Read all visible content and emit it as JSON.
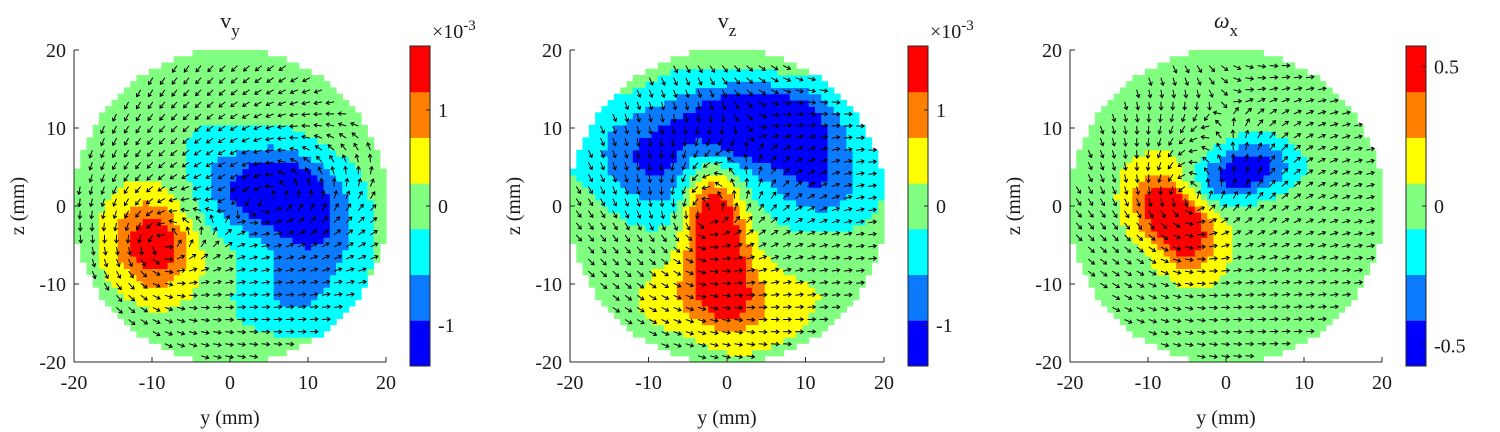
{
  "chart_data": [
    {
      "type": "heatmap",
      "subtype": "contour-with-quiver",
      "title": "v_y",
      "title_main": "v",
      "title_sub": "y",
      "xlabel": "y (mm)",
      "ylabel": "z (mm)",
      "xlim": [
        -20,
        20
      ],
      "ylim": [
        -20,
        20
      ],
      "x_ticks": [
        "-20",
        "-10",
        "0",
        "10",
        "20"
      ],
      "y_ticks": [
        "20",
        "10",
        "0",
        "-10",
        "-20"
      ],
      "colorbar": {
        "multiplier_label": "×10",
        "multiplier_exp": "-3",
        "tick_labels": [
          "1",
          "0",
          "-1"
        ],
        "levels": [
          "#0000ff",
          "#0a7bff",
          "#00ffff",
          "#80ff80",
          "#ffff00",
          "#ff7f00",
          "#ff0000"
        ]
      },
      "regions": [
        {
          "name": "dominant-negative-lobe",
          "center": [
            5,
            2
          ],
          "level": "#0000ff"
        },
        {
          "name": "positive-lobe",
          "center": [
            -10,
            -5
          ],
          "level": "#ffff00"
        },
        {
          "name": "positive-core",
          "center": [
            -9,
            -5
          ],
          "level": "#ff7f00"
        }
      ]
    },
    {
      "type": "heatmap",
      "subtype": "contour-with-quiver",
      "title": "v_z",
      "title_main": "v",
      "title_sub": "z",
      "xlabel": "y (mm)",
      "ylabel": "z (mm)",
      "xlim": [
        -20,
        20
      ],
      "ylim": [
        -20,
        20
      ],
      "x_ticks": [
        "-20",
        "-10",
        "0",
        "10",
        "20"
      ],
      "y_ticks": [
        "20",
        "10",
        "0",
        "-10",
        "-20"
      ],
      "colorbar": {
        "multiplier_label": "×10",
        "multiplier_exp": "-3",
        "tick_labels": [
          "1",
          "0",
          "-1"
        ],
        "levels": [
          "#0000ff",
          "#0a7bff",
          "#00ffff",
          "#80ff80",
          "#ffff00",
          "#ff7f00",
          "#ff0000"
        ]
      },
      "regions": [
        {
          "name": "negative-upper-band",
          "center": [
            3,
            10
          ],
          "level": "#0000ff"
        },
        {
          "name": "positive-lobe",
          "center": [
            -1,
            -4
          ],
          "level": "#ffff00"
        },
        {
          "name": "positive-core",
          "center": [
            -2,
            -2
          ],
          "level": "#ff0000"
        }
      ]
    },
    {
      "type": "heatmap",
      "subtype": "contour-with-quiver",
      "title": "ω_x",
      "title_main": "ω",
      "title_sub": "x",
      "xlabel": "y (mm)",
      "ylabel": "z (mm)",
      "xlim": [
        -20,
        20
      ],
      "ylim": [
        -20,
        20
      ],
      "x_ticks": [
        "-20",
        "-10",
        "0",
        "10",
        "20"
      ],
      "y_ticks": [
        "20",
        "10",
        "0",
        "-10",
        "-20"
      ],
      "colorbar": {
        "multiplier_label": "",
        "multiplier_exp": "",
        "tick_labels": [
          "0.5",
          "0",
          "-0.5"
        ],
        "levels": [
          "#0000ff",
          "#0a7bff",
          "#00ffff",
          "#80ff80",
          "#ffff00",
          "#ff7f00",
          "#ff0000"
        ]
      },
      "regions": [
        {
          "name": "positive-vortex",
          "center": [
            -6,
            -1
          ],
          "level": "#ff0000"
        },
        {
          "name": "negative-vortex",
          "center": [
            1,
            4
          ],
          "level": "#0000ff"
        }
      ]
    }
  ]
}
